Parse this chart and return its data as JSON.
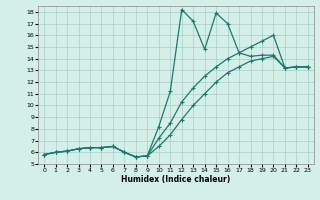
{
  "xlabel": "Humidex (Indice chaleur)",
  "bg_color": "#d4eee8",
  "line_color": "#1a7a6e",
  "grid_color": "#aacccc",
  "xlim": [
    -0.5,
    23.5
  ],
  "ylim": [
    5,
    18.5
  ],
  "xticks": [
    0,
    1,
    2,
    3,
    4,
    5,
    6,
    7,
    8,
    9,
    10,
    11,
    12,
    13,
    14,
    15,
    16,
    17,
    18,
    19,
    20,
    21,
    22,
    23
  ],
  "yticks": [
    5,
    6,
    7,
    8,
    9,
    10,
    11,
    12,
    13,
    14,
    15,
    16,
    17,
    18
  ],
  "line1_x": [
    0,
    1,
    2,
    3,
    4,
    5,
    6,
    7,
    8,
    9,
    10,
    11,
    12,
    13,
    14,
    15,
    16,
    17,
    18,
    19,
    20,
    21,
    22,
    23
  ],
  "line1_y": [
    5.8,
    6.0,
    6.1,
    6.3,
    6.4,
    6.4,
    6.5,
    6.0,
    5.6,
    5.7,
    8.2,
    11.2,
    18.2,
    17.2,
    14.8,
    17.9,
    17.0,
    14.5,
    14.2,
    14.3,
    14.3,
    13.2,
    13.3,
    13.3
  ],
  "line2_x": [
    0,
    1,
    2,
    3,
    4,
    5,
    6,
    7,
    8,
    9,
    10,
    11,
    12,
    13,
    14,
    15,
    16,
    17,
    18,
    19,
    20,
    21,
    22,
    23
  ],
  "line2_y": [
    5.8,
    6.0,
    6.1,
    6.3,
    6.4,
    6.4,
    6.5,
    6.0,
    5.6,
    5.7,
    7.2,
    8.5,
    10.3,
    11.5,
    12.5,
    13.3,
    14.0,
    14.5,
    15.0,
    15.5,
    16.0,
    13.2,
    13.3,
    13.3
  ],
  "line3_x": [
    0,
    1,
    2,
    3,
    4,
    5,
    6,
    7,
    8,
    9,
    10,
    11,
    12,
    13,
    14,
    15,
    16,
    17,
    18,
    19,
    20,
    21,
    22,
    23
  ],
  "line3_y": [
    5.8,
    6.0,
    6.1,
    6.3,
    6.4,
    6.4,
    6.5,
    6.0,
    5.6,
    5.7,
    6.5,
    7.5,
    8.8,
    10.0,
    11.0,
    12.0,
    12.8,
    13.3,
    13.8,
    14.0,
    14.2,
    13.2,
    13.3,
    13.3
  ]
}
